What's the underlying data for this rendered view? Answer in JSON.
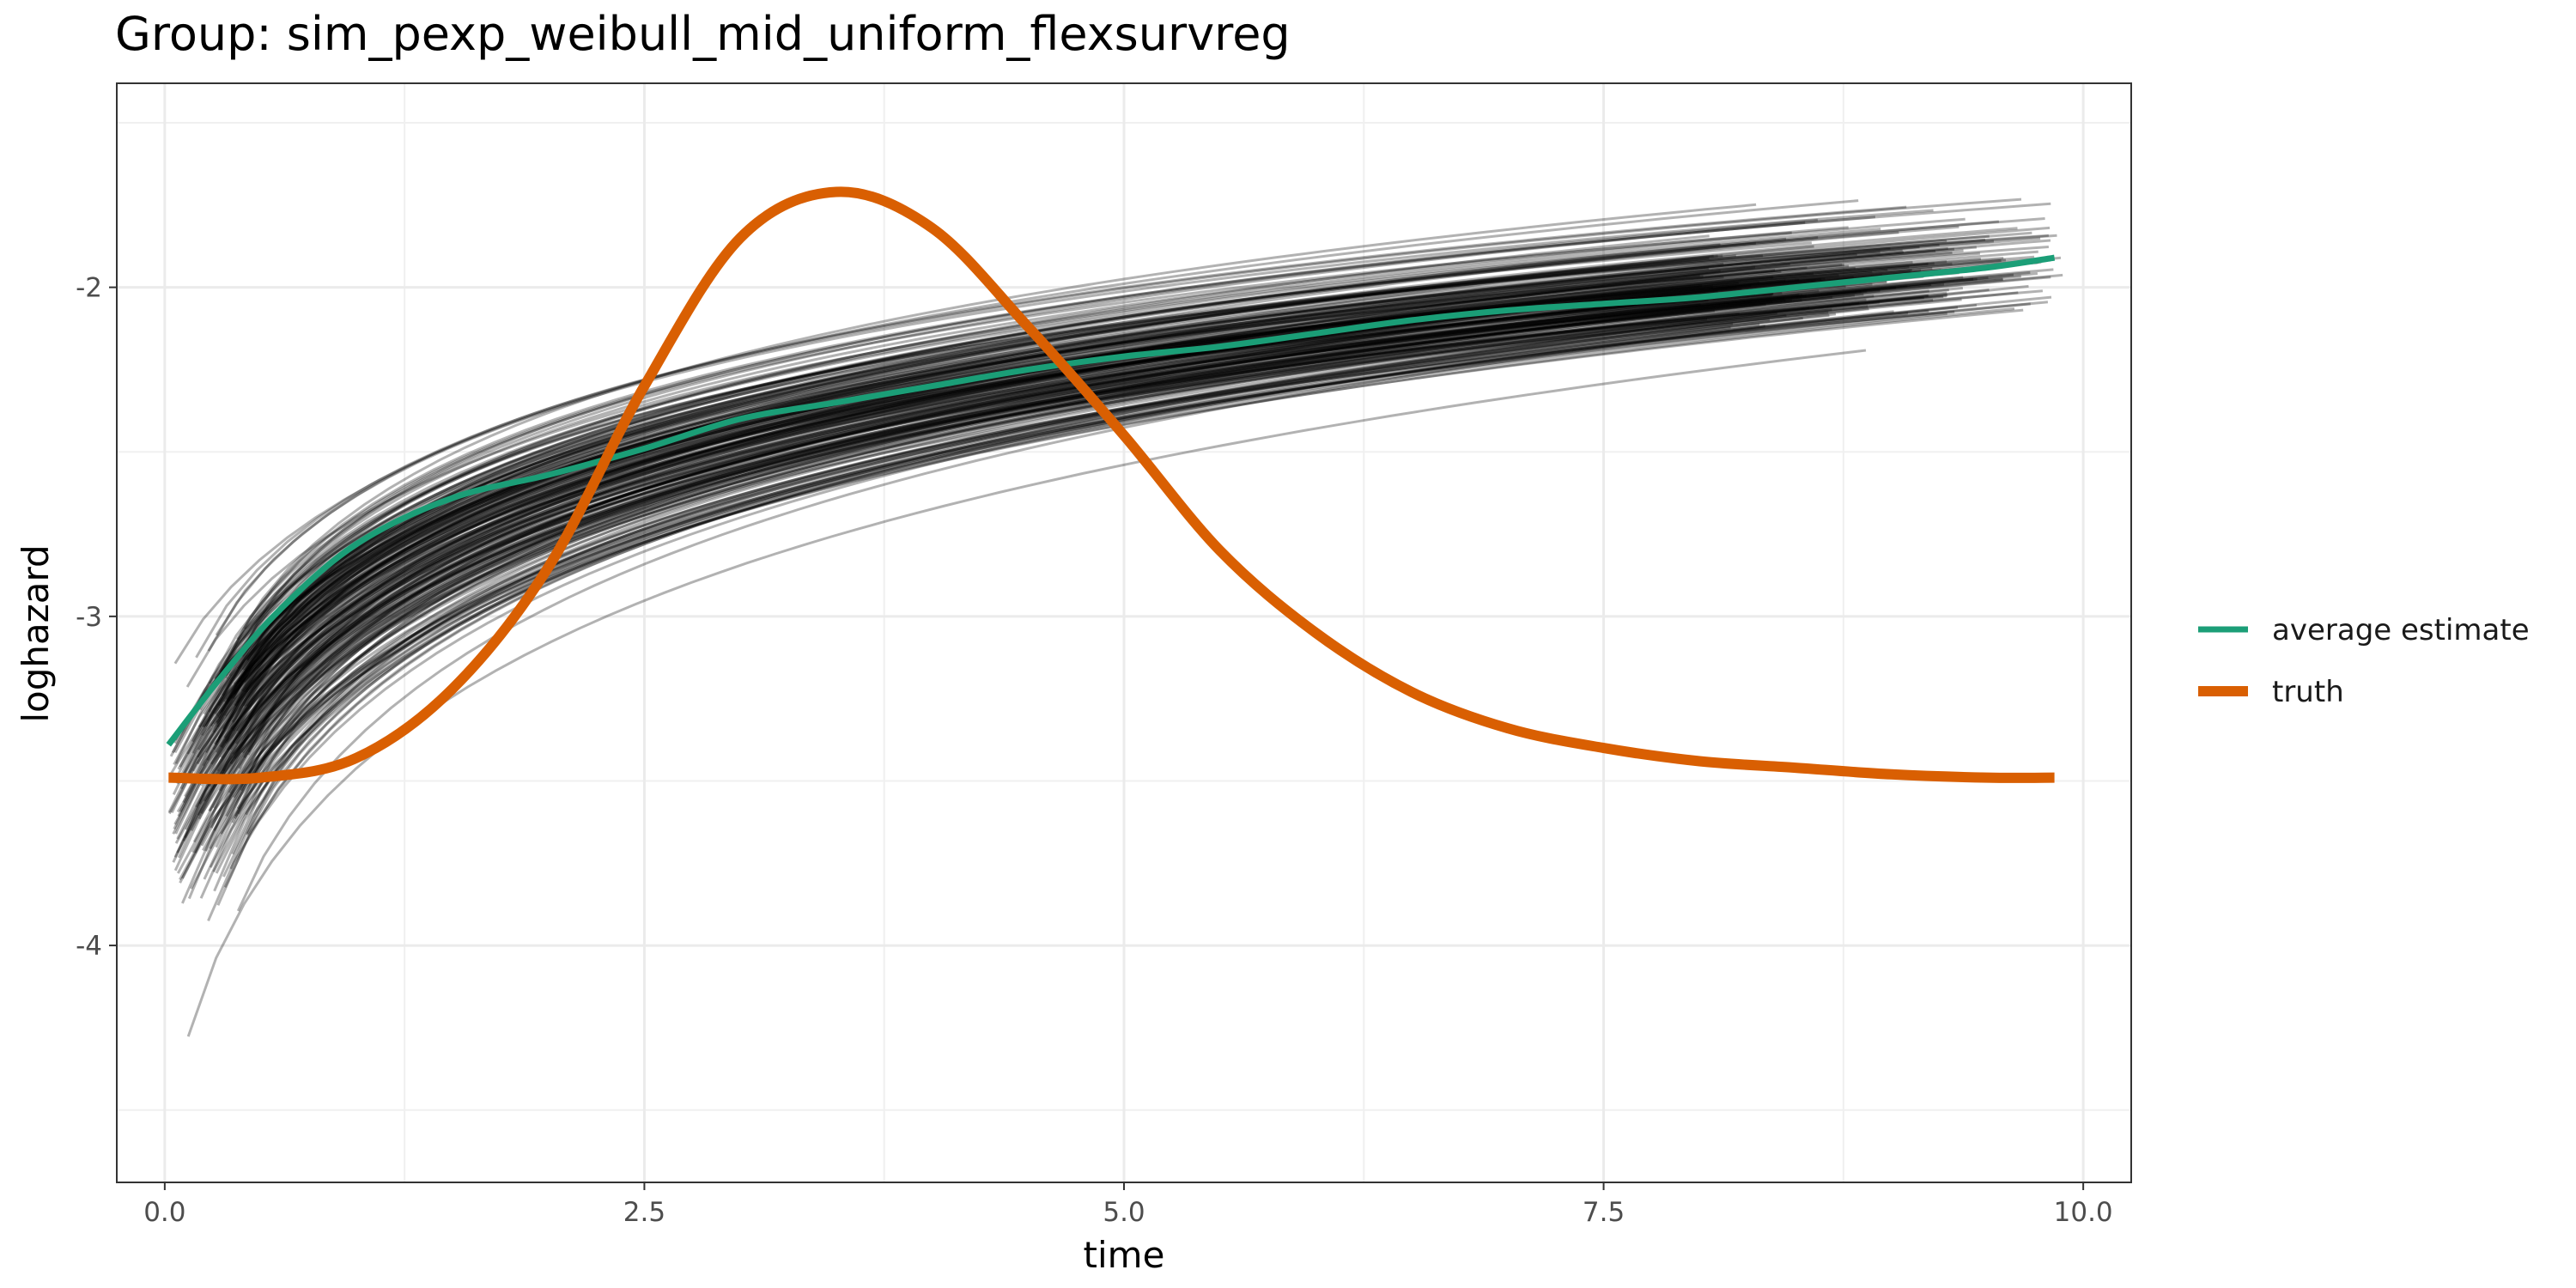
{
  "chart_data": {
    "type": "line",
    "title": "Group: sim_pexp_weibull_mid_uniform_flexsurvreg",
    "xlabel": "time",
    "ylabel": "loghazard",
    "xlim": [
      -0.25,
      10.25
    ],
    "ylim": [
      -4.72,
      -1.38
    ],
    "x_ticks": [
      0,
      2.5,
      5,
      7.5,
      10
    ],
    "x_tick_labels": [
      "0.0",
      "2.5",
      "5.0",
      "7.5",
      "10.0"
    ],
    "y_ticks": [
      -4,
      -3,
      -2
    ],
    "y_tick_labels": [
      "-4",
      "-3",
      "-2"
    ],
    "grid": true,
    "legend_position": "right",
    "series": [
      {
        "name": "average estimate",
        "color": "#1B9E77",
        "x": [
          0.02,
          0.3,
          0.6,
          1.0,
          1.5,
          2.0,
          2.5,
          3.0,
          3.5,
          4.0,
          4.5,
          5.0,
          5.5,
          6.0,
          6.5,
          7.0,
          7.5,
          8.0,
          8.5,
          9.0,
          9.5,
          9.85
        ],
        "y": [
          -3.39,
          -3.18,
          -2.98,
          -2.78,
          -2.64,
          -2.57,
          -2.49,
          -2.4,
          -2.35,
          -2.3,
          -2.25,
          -2.21,
          -2.18,
          -2.14,
          -2.1,
          -2.07,
          -2.05,
          -2.03,
          -2.0,
          -1.97,
          -1.94,
          -1.91
        ]
      },
      {
        "name": "truth",
        "color": "#D95F02",
        "x": [
          0.02,
          0.5,
          1.0,
          1.5,
          2.0,
          2.5,
          3.0,
          3.5,
          4.0,
          4.5,
          5.0,
          5.5,
          6.0,
          6.5,
          7.0,
          7.5,
          8.0,
          8.5,
          9.0,
          9.5,
          9.85
        ],
        "y": [
          -3.49,
          -3.49,
          -3.43,
          -3.22,
          -2.85,
          -2.3,
          -1.85,
          -1.71,
          -1.82,
          -2.12,
          -2.45,
          -2.8,
          -3.05,
          -3.23,
          -3.34,
          -3.4,
          -3.44,
          -3.46,
          -3.48,
          -3.49,
          -3.49
        ]
      }
    ],
    "sample_curves": {
      "count": 220,
      "color": "#000000",
      "opacity": 0.3,
      "start_y_range": [
        -4.58,
        -2.78
      ],
      "end_y_range": [
        -2.28,
        -1.54
      ],
      "end_x_range": [
        8.0,
        9.9
      ]
    }
  }
}
